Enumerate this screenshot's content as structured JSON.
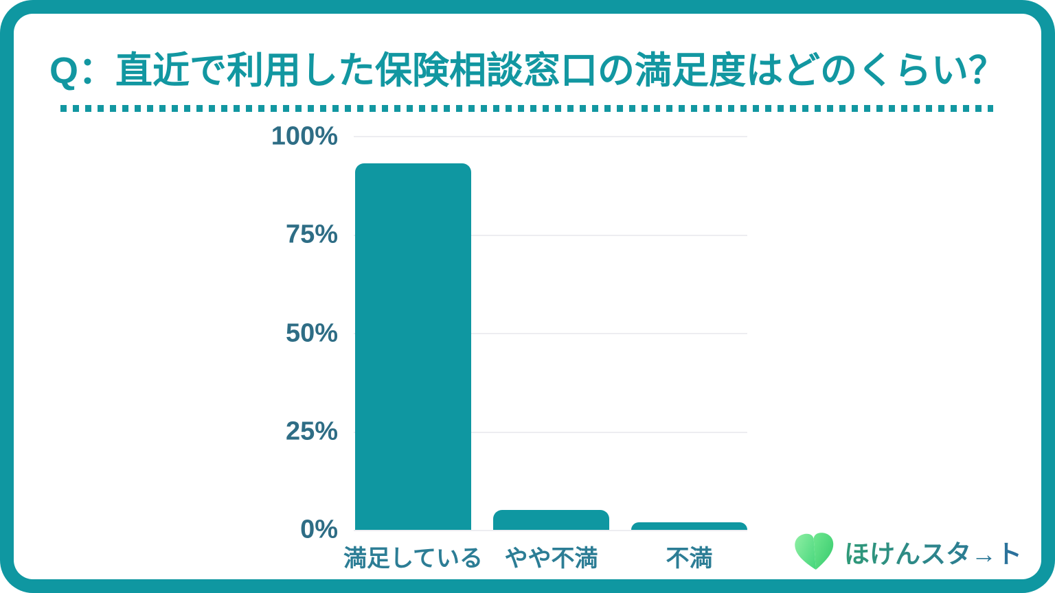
{
  "title": "Q：直近で利用した保険相談窓口の満足度はどのくらい？",
  "chart_data": {
    "type": "bar",
    "categories": [
      "満足している",
      "やや不満",
      "不満"
    ],
    "values": [
      93,
      5,
      2
    ],
    "unit": "%",
    "title": "Q：直近で利用した保険相談窓口の満足度はどのくらい？",
    "xlabel": "",
    "ylabel": "",
    "ylim": [
      0,
      100
    ],
    "yticks": [
      "100%",
      "75%",
      "50%",
      "25%",
      "0%"
    ],
    "grid": true,
    "legend": false,
    "bar_color": "#0F97A1"
  },
  "logo": {
    "text": "ほけんスタ→ト",
    "icon": "heart-icon",
    "heart_gradient": [
      "#90EFA4",
      "#34C96C"
    ],
    "text_gradient": [
      "#2F9A78",
      "#2B6F9E"
    ]
  },
  "colors": {
    "accent_teal": "#0F97A1",
    "title_text": "#1297A1",
    "y_axis_label": "#2E6D85",
    "x_axis_label": "#2C7D95",
    "gridline": "#EDEDF1",
    "background": "#FFFFFF"
  }
}
